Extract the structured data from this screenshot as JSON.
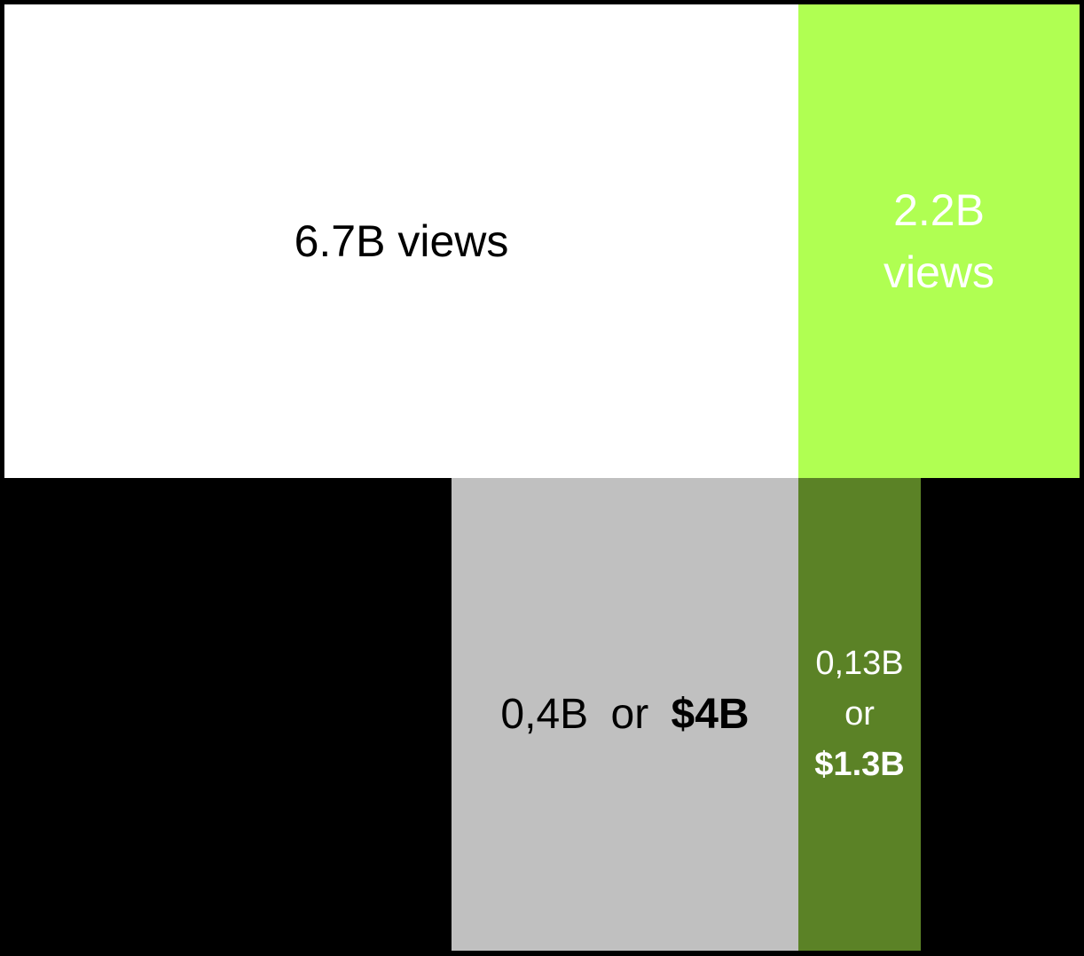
{
  "chart_data": {
    "type": "bar",
    "colors": {
      "background": "#000000",
      "views_total": "#ffffff",
      "views_highlight": "#b0ff52",
      "revenue_total": "#c0c0c0",
      "revenue_highlight": "#5b8226",
      "dark_text": "#000000",
      "light_text": "#ffffff"
    },
    "blocks": [
      {
        "id": "views-total",
        "value": 6.7,
        "unit": "B",
        "label": "6.7B views"
      },
      {
        "id": "views-highlight",
        "value": 2.2,
        "unit": "B",
        "label_line1": "2.2B",
        "label_line2": "views"
      },
      {
        "id": "revenue-total",
        "value": 0.4,
        "money": 4,
        "label_value": "0,4B",
        "label_or": "or",
        "label_money": "$4B"
      },
      {
        "id": "revenue-highlight",
        "value": 0.13,
        "money": 1.3,
        "label_value": "0,13B",
        "label_or": "or",
        "label_money": "$1.3B"
      }
    ]
  }
}
